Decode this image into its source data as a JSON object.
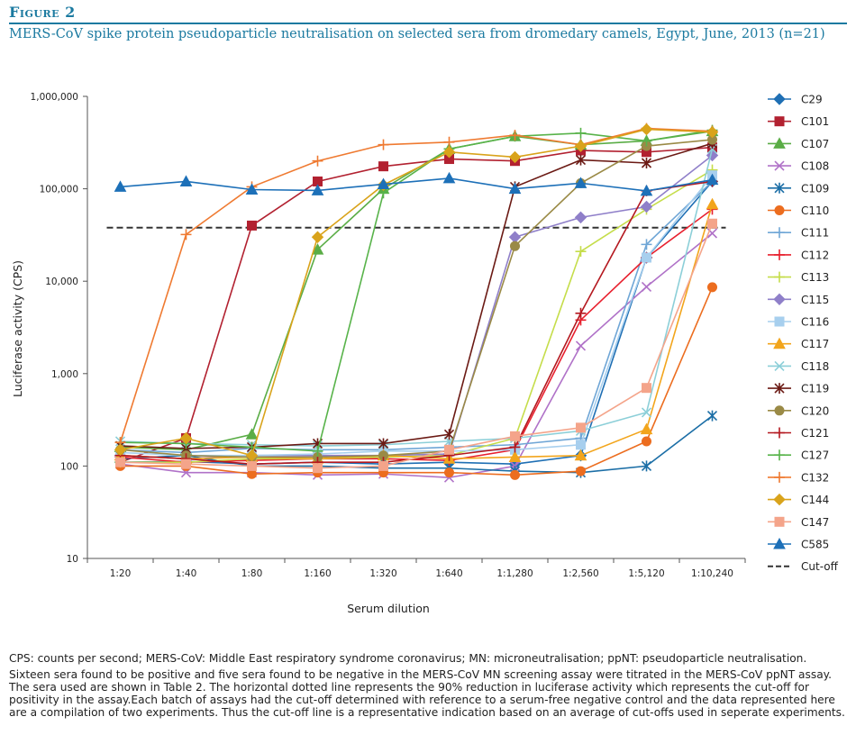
{
  "figure": {
    "label": "Figure 2",
    "title": "MERS-CoV spike protein pseudoparticle neutralisation on selected sera from dromedary camels, Egypt, June, 2013 (n=21)"
  },
  "notes": {
    "abbreviations": "CPS: counts per second; MERS-CoV: Middle East respiratory syndrome coronavirus; MN: microneutralisation; ppNT: pseudoparticle neutralisation.",
    "description": "Sixteen sera found to be positive and five sera found to be negative in the MERS-CoV MN screening assay were titrated in the MERS-CoV ppNT assay. The sera used are shown in Table 2. The horizontal dotted line represents the 90% reduction in luciferase activity which represents the cut-off for positivity in the assay.Each batch of assays had the cut-off determined with reference to a serum-free negative control and the data represented here are a compilation of two experiments. Thus the cut-off line is a representative indication based on an average of cut-offs used in seperate experiments."
  },
  "chart_data": {
    "type": "line",
    "xlabel": "Serum dilution",
    "ylabel": "Luciferase activity (CPS)",
    "y_scale": "log",
    "ylim": [
      10,
      1000000
    ],
    "y_ticks": [
      10,
      100,
      1000,
      10000,
      100000,
      1000000
    ],
    "y_tick_labels": [
      "10",
      "100",
      "1,000",
      "10,000",
      "100,000",
      "1,000,000"
    ],
    "categories": [
      "1:20",
      "1:40",
      "1:80",
      "1:160",
      "1:320",
      "1:640",
      "1:1,280",
      "1:2,560",
      "1:5,120",
      "1:10,240"
    ],
    "grid": false,
    "legend_position": "right",
    "cutoff": {
      "name": "Cut-off",
      "value": 38000,
      "color": "#333333",
      "style": "dashed"
    },
    "series": [
      {
        "name": "C29",
        "color": "#1f6fb4",
        "marker": "diamond",
        "values": [
          110,
          112,
          105,
          110,
          105,
          110,
          105,
          130,
          18000,
          120000
        ]
      },
      {
        "name": "C101",
        "color": "#b22130",
        "marker": "square",
        "values": [
          110,
          200,
          40000,
          120000,
          175000,
          210000,
          200000,
          260000,
          250000,
          280000
        ]
      },
      {
        "name": "C107",
        "color": "#5aad46",
        "marker": "triangle",
        "values": [
          160,
          150,
          220,
          22000,
          100000,
          270000,
          370000,
          300000,
          330000,
          420000
        ]
      },
      {
        "name": "C108",
        "color": "#b072c8",
        "marker": "x",
        "values": [
          105,
          85,
          85,
          80,
          82,
          75,
          100,
          2000,
          8700,
          33000
        ]
      },
      {
        "name": "C109",
        "color": "#1b6ea6",
        "marker": "asterisk",
        "values": [
          120,
          130,
          100,
          100,
          95,
          95,
          88,
          85,
          100,
          350
        ]
      },
      {
        "name": "C110",
        "color": "#ec6d1f",
        "marker": "circle",
        "values": [
          100,
          100,
          82,
          85,
          85,
          85,
          80,
          88,
          185,
          8600
        ]
      },
      {
        "name": "C111",
        "color": "#6fa6d6",
        "marker": "plus",
        "values": [
          150,
          140,
          155,
          150,
          150,
          160,
          170,
          200,
          25000,
          120000
        ]
      },
      {
        "name": "C112",
        "color": "#e8202e",
        "marker": "plus",
        "values": [
          125,
          110,
          115,
          120,
          120,
          115,
          150,
          3800,
          18000,
          60000
        ]
      },
      {
        "name": "C113",
        "color": "#c5dd4a",
        "marker": "plus",
        "values": [
          110,
          110,
          120,
          120,
          125,
          130,
          200,
          21000,
          60000,
          160000
        ]
      },
      {
        "name": "C115",
        "color": "#8f7fc9",
        "marker": "diamond",
        "values": [
          130,
          120,
          130,
          130,
          130,
          135,
          30000,
          49000,
          64000,
          230000
        ]
      },
      {
        "name": "C116",
        "color": "#a7cfee",
        "marker": "square",
        "values": [
          140,
          130,
          130,
          135,
          145,
          145,
          150,
          170,
          18000,
          140000
        ]
      },
      {
        "name": "C117",
        "color": "#f2a51c",
        "marker": "triangle",
        "values": [
          130,
          120,
          125,
          120,
          130,
          120,
          125,
          130,
          250,
          68000
        ]
      },
      {
        "name": "C118",
        "color": "#8ccfd8",
        "marker": "x",
        "values": [
          185,
          175,
          170,
          165,
          170,
          185,
          200,
          240,
          380,
          270000
        ]
      },
      {
        "name": "C119",
        "color": "#6b1a14",
        "marker": "asterisk",
        "values": [
          165,
          155,
          160,
          175,
          175,
          220,
          105000,
          205000,
          190000,
          310000
        ]
      },
      {
        "name": "C120",
        "color": "#9a8a46",
        "marker": "circle",
        "values": [
          150,
          130,
          125,
          125,
          130,
          145,
          24000,
          115000,
          290000,
          340000
        ]
      },
      {
        "name": "C121",
        "color": "#b4181f",
        "marker": "plus",
        "values": [
          130,
          120,
          105,
          110,
          110,
          130,
          160,
          4500,
          95000,
          120000
        ]
      },
      {
        "name": "C127",
        "color": "#58b34a",
        "marker": "plus",
        "values": [
          180,
          175,
          160,
          145,
          90000,
          270000,
          370000,
          400000,
          330000,
          430000
        ]
      },
      {
        "name": "C132",
        "color": "#ef7a31",
        "marker": "plus",
        "values": [
          180,
          32000,
          105000,
          200000,
          300000,
          320000,
          380000,
          300000,
          450000,
          420000
        ]
      },
      {
        "name": "C144",
        "color": "#d9a31b",
        "marker": "diamond",
        "values": [
          150,
          200,
          130,
          30000,
          110000,
          250000,
          220000,
          290000,
          440000,
          410000
        ]
      },
      {
        "name": "C147",
        "color": "#f4a48a",
        "marker": "square",
        "values": [
          110,
          105,
          100,
          95,
          100,
          150,
          210,
          260,
          700,
          42000
        ]
      },
      {
        "name": "C585",
        "color": "#1d70b8",
        "marker": "triangle",
        "values": [
          105000,
          120000,
          98000,
          96000,
          112000,
          130000,
          100000,
          115000,
          95000,
          125000
        ]
      }
    ]
  }
}
